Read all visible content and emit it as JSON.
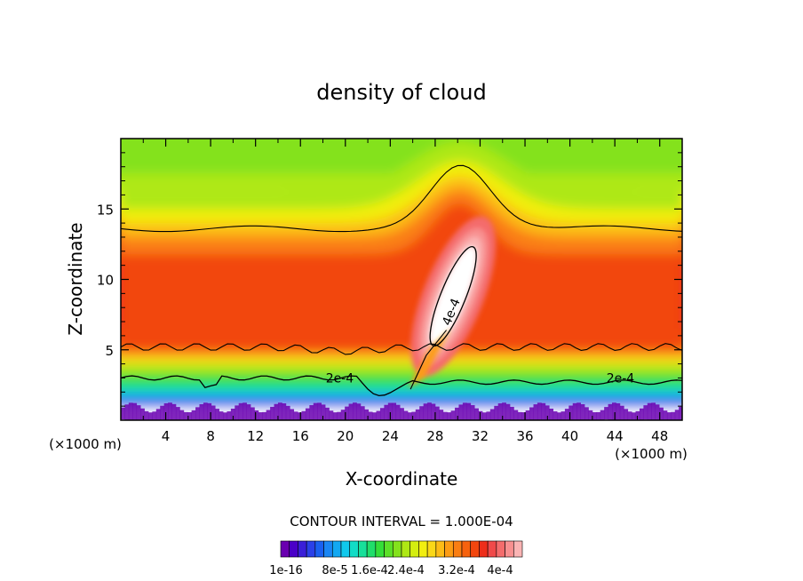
{
  "chart_data": {
    "type": "heatmap",
    "title": "density of cloud",
    "xlabel": "X-coordinate",
    "ylabel": "Z-coordinate",
    "x_unit_label": "(×1000 m)",
    "y_unit_label": "(×1000 m)",
    "xlim": [
      0,
      50
    ],
    "ylim": [
      0,
      20
    ],
    "x_ticks": [
      {
        "value": 4,
        "label": "4"
      },
      {
        "value": 8,
        "label": "8"
      },
      {
        "value": 12,
        "label": "12"
      },
      {
        "value": 16,
        "label": "16"
      },
      {
        "value": 20,
        "label": "20"
      },
      {
        "value": 24,
        "label": "24"
      },
      {
        "value": 28,
        "label": "28"
      },
      {
        "value": 32,
        "label": "32"
      },
      {
        "value": 36,
        "label": "36"
      },
      {
        "value": 40,
        "label": "40"
      },
      {
        "value": 44,
        "label": "44"
      },
      {
        "value": 48,
        "label": "48"
      }
    ],
    "y_ticks": [
      {
        "value": 5,
        "label": "5"
      },
      {
        "value": 10,
        "label": "10"
      },
      {
        "value": 15,
        "label": "15"
      }
    ],
    "contour_interval_text": "CONTOUR INTERVAL = 1.000E-04",
    "contour_labels": [
      "2e-4",
      "2e-4",
      "4e-4"
    ],
    "colorbar": {
      "colors": [
        "#6a00b0",
        "#4a00c8",
        "#3a1ed8",
        "#2a40e8",
        "#1a60f0",
        "#1a86f4",
        "#12a8f2",
        "#10c8ec",
        "#12dcc6",
        "#18e09a",
        "#20de6a",
        "#34de38",
        "#5ce028",
        "#84e21c",
        "#aee814",
        "#d4ee10",
        "#f2ee10",
        "#fad818",
        "#fcbc16",
        "#fc9c14",
        "#fa7e12",
        "#f6620e",
        "#f2460e",
        "#ee2e1a",
        "#f04a4a",
        "#f46c6c",
        "#f89090",
        "#fab4b4"
      ],
      "tick_labels": [
        "1e-16",
        "8e-5",
        "1.6e-4",
        "2.4e-4",
        "3.2e-4",
        "4e-4"
      ]
    }
  }
}
